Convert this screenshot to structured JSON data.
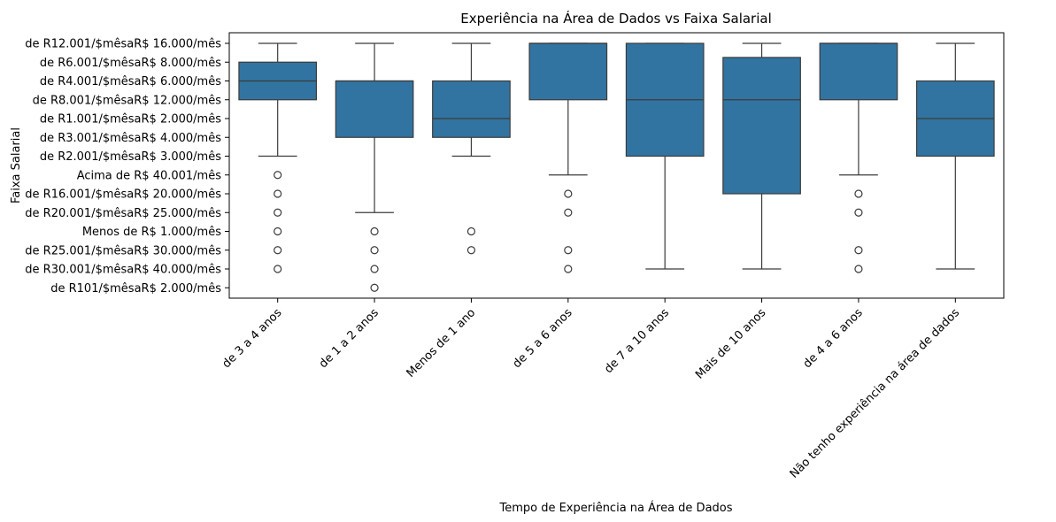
{
  "chart_data": {
    "type": "box",
    "title": "Experiência na Área de Dados vs Faixa Salarial",
    "xlabel": "Tempo de Experiência na Área de Dados",
    "ylabel": "Faixa Salarial",
    "grid": false,
    "legend": null,
    "box_color": "#3274a1",
    "line_color": "#3b3b3b",
    "y_categories": [
      "de R12.001/$mêsaR$ 16.000/mês",
      "de R6.001/$mêsaR$ 8.000/mês",
      "de R4.001/$mêsaR$ 6.000/mês",
      "de R8.001/$mêsaR$ 12.000/mês",
      "de R1.001/$mêsaR$ 2.000/mês",
      "de R3.001/$mêsaR$ 4.000/mês",
      "de R2.001/$mêsaR$ 3.000/mês",
      "Acima de R$ 40.001/mês",
      "de R16.001/$mêsaR$ 20.000/mês",
      "de R20.001/$mêsaR$ 25.000/mês",
      "Menos de R$ 1.000/mês",
      "de R25.001/$mêsaR$ 30.000/mês",
      "de R30.001/$mêsaR$ 40.000/mês",
      "de R101/$mêsaR$ 2.000/mês"
    ],
    "categories": [
      "de 3 a 4 anos",
      "de 1 a 2 anos",
      "Menos de 1 ano",
      "de 5 a 6 anos",
      "de 7 a 10 anos",
      "Mais de 10 anos",
      "de 4 a 6 anos",
      "Não tenho experiência na área de dados"
    ],
    "boxes": [
      {
        "whislo": 0,
        "q1": 1,
        "med": 2,
        "q3": 3,
        "whishi": 6,
        "fliers": [
          7,
          8,
          9,
          10,
          11,
          12
        ]
      },
      {
        "whislo": 0,
        "q1": 2,
        "med": 2,
        "q3": 5,
        "whishi": 9,
        "fliers": [
          10,
          11,
          12,
          13
        ]
      },
      {
        "whislo": 0,
        "q1": 2,
        "med": 4,
        "q3": 5,
        "whishi": 6,
        "fliers": [
          10,
          11
        ]
      },
      {
        "whislo": 0,
        "q1": 0,
        "med": 0,
        "q3": 3,
        "whishi": 7,
        "fliers": [
          8,
          9,
          11,
          12
        ]
      },
      {
        "whislo": 0,
        "q1": 0,
        "med": 3,
        "q3": 6,
        "whishi": 12,
        "fliers": []
      },
      {
        "whislo": 0,
        "q1": 0.75,
        "med": 3,
        "q3": 8,
        "whishi": 12,
        "fliers": []
      },
      {
        "whislo": 0,
        "q1": 0,
        "med": 0,
        "q3": 3,
        "whishi": 7,
        "fliers": [
          8,
          9,
          11,
          12
        ]
      },
      {
        "whislo": 0,
        "q1": 2,
        "med": 4,
        "q3": 6,
        "whishi": 12,
        "fliers": []
      }
    ]
  }
}
